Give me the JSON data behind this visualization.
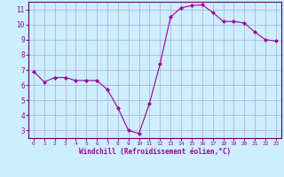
{
  "x": [
    0,
    1,
    2,
    3,
    4,
    5,
    6,
    7,
    8,
    9,
    10,
    11,
    12,
    13,
    14,
    15,
    16,
    17,
    18,
    19,
    20,
    21,
    22,
    23
  ],
  "y": [
    6.9,
    6.2,
    6.5,
    6.5,
    6.3,
    6.3,
    6.3,
    5.7,
    4.5,
    3.0,
    2.8,
    4.8,
    7.4,
    10.5,
    11.1,
    11.25,
    11.3,
    10.8,
    10.2,
    10.2,
    10.1,
    9.5,
    9.0,
    8.9
  ],
  "line_color": "#990099",
  "marker_color": "#990099",
  "bg_color": "#cceeff",
  "grid_color": "#aaaacc",
  "xlabel": "Windchill (Refroidissement éolien,°C)",
  "xlabel_color": "#990099",
  "tick_color": "#990099",
  "spine_color": "#660066",
  "ylim": [
    2.5,
    11.5
  ],
  "xlim": [
    -0.5,
    23.5
  ],
  "yticks": [
    3,
    4,
    5,
    6,
    7,
    8,
    9,
    10,
    11
  ],
  "xtick_labels": [
    "0",
    "1",
    "2",
    "3",
    "4",
    "5",
    "6",
    "7",
    "8",
    "9",
    "10",
    "11",
    "12",
    "13",
    "14",
    "15",
    "16",
    "17",
    "18",
    "19",
    "20",
    "21",
    "22",
    "23"
  ]
}
